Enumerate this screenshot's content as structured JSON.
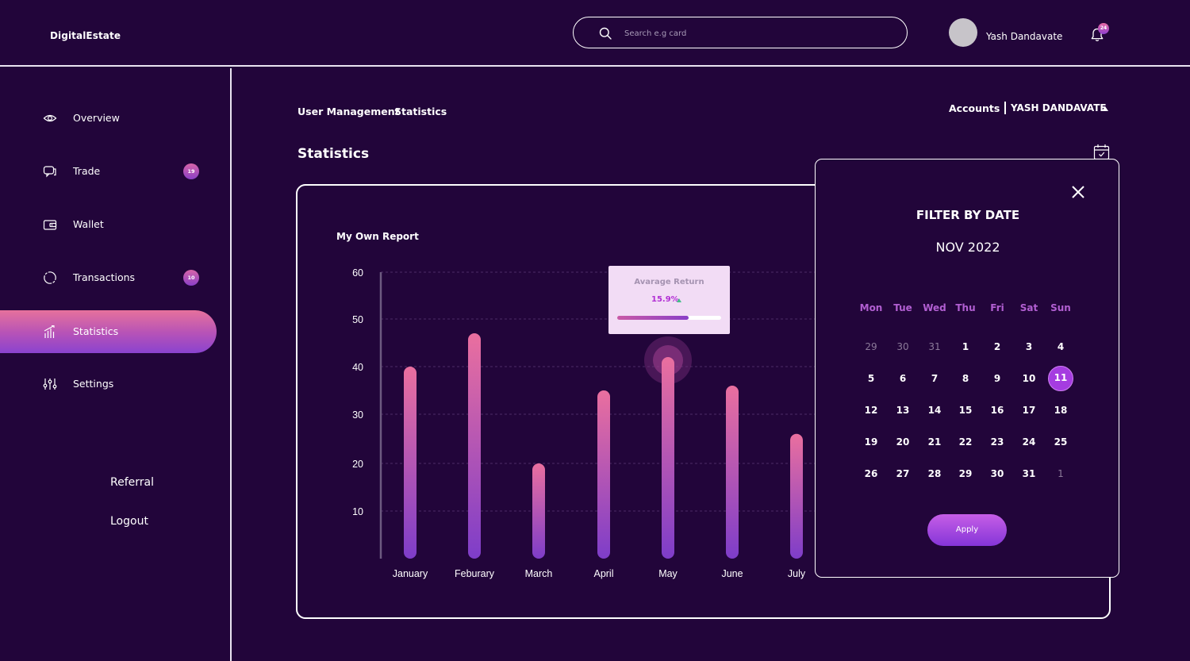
{
  "app": {
    "title": "DigitalEstate"
  },
  "header": {
    "search": {
      "placeholder": "Search e.g card",
      "value": ""
    },
    "user": {
      "name": "Yash Dandavate"
    },
    "notifications": {
      "count": "24"
    }
  },
  "sidebar": {
    "items": [
      {
        "label": "Overview",
        "icon": "eye-icon",
        "badge": ""
      },
      {
        "label": "Trade",
        "icon": "chat-icon",
        "badge": "19"
      },
      {
        "label": "Wallet",
        "icon": "wallet-icon",
        "badge": ""
      },
      {
        "label": "Transactions",
        "icon": "cycle-icon",
        "badge": "10"
      },
      {
        "label": "Statistics",
        "icon": "bar-chart-icon",
        "badge": "",
        "active": true
      },
      {
        "label": "Settings",
        "icon": "sliders-icon",
        "badge": ""
      }
    ],
    "links": {
      "referral": "Referral",
      "logout": "Logout"
    }
  },
  "breadcrumb": {
    "first": "User Management",
    "second": "Statistics"
  },
  "accounts": {
    "label": "Accounts",
    "user": "YASH DANDAVATE"
  },
  "page": {
    "title": "Statistics"
  },
  "chart_data": {
    "type": "bar",
    "title": "My Own Report",
    "categories": [
      "January",
      "Feburary",
      "March",
      "April",
      "May",
      "June",
      "July"
    ],
    "values": [
      40,
      47,
      20,
      35,
      42,
      36,
      26
    ],
    "yticks": [
      10,
      20,
      30,
      40,
      50,
      60
    ],
    "ylim": [
      0,
      60
    ],
    "grid": true,
    "colors": {
      "bar_top": "#ea6f9f",
      "bar_bottom": "#7e3dc9"
    },
    "tooltip": {
      "label": "Avarage Return",
      "value": "15.9%",
      "progress": 0.69,
      "category": "May"
    }
  },
  "date_filter": {
    "title": "FILTER BY DATE",
    "month": "NOV 2022",
    "weekdays": [
      "Mon",
      "Tue",
      "Wed",
      "Thu",
      "Fri",
      "Sat",
      "Sun"
    ],
    "weeks": [
      [
        "29",
        "30",
        "31",
        "1",
        "2",
        "3",
        "4"
      ],
      [
        "5",
        "6",
        "7",
        "8",
        "9",
        "10",
        "11"
      ],
      [
        "12",
        "13",
        "14",
        "15",
        "16",
        "17",
        "18"
      ],
      [
        "19",
        "20",
        "21",
        "22",
        "23",
        "24",
        "25"
      ],
      [
        "26",
        "27",
        "28",
        "29",
        "30",
        "31",
        "1"
      ]
    ],
    "muted": [
      [
        0,
        0
      ],
      [
        0,
        1
      ],
      [
        0,
        2
      ],
      [
        4,
        6
      ]
    ],
    "selected": "11",
    "apply_label": "Apply"
  }
}
